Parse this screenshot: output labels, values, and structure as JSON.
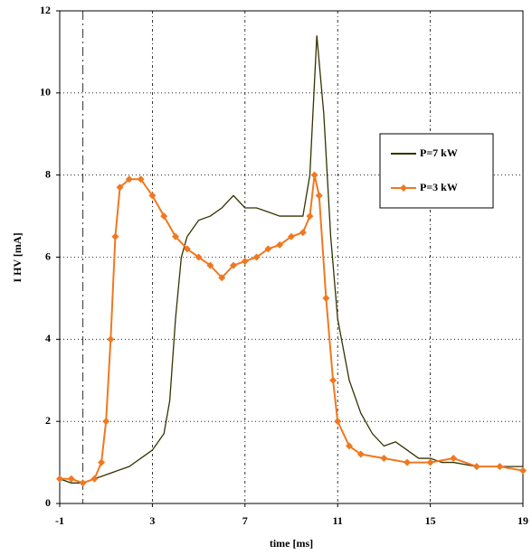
{
  "chart_data": {
    "type": "line",
    "x_label": "time [ms]",
    "y_label": "I HV [mA]",
    "xlim": [
      -1,
      19
    ],
    "xticks": [
      -1,
      3,
      7,
      11,
      15,
      19
    ],
    "ylim": [
      0,
      12
    ],
    "yticks": [
      0,
      2,
      4,
      6,
      8,
      10,
      12
    ],
    "grid": true,
    "legend": "right",
    "vline": 0,
    "series": [
      {
        "name": "P=7 kW",
        "color": "#333300",
        "marker": "none",
        "x": [
          -1,
          -0.5,
          0,
          0.5,
          1,
          1.5,
          2,
          2.5,
          3,
          3.5,
          3.75,
          4,
          4.25,
          4.5,
          5,
          5.5,
          6,
          6.5,
          7,
          7.5,
          8,
          8.5,
          9,
          9.5,
          9.8,
          10.1,
          10.4,
          10.7,
          11,
          11.5,
          12,
          12.5,
          13,
          13.5,
          14,
          14.5,
          15,
          15.5,
          16,
          17,
          18,
          19
        ],
        "values": [
          0.6,
          0.5,
          0.5,
          0.6,
          0.7,
          0.8,
          0.9,
          1.1,
          1.3,
          1.7,
          2.5,
          4.5,
          6.0,
          6.5,
          6.9,
          7.0,
          7.2,
          7.5,
          7.2,
          7.2,
          7.1,
          7.0,
          7.0,
          7.0,
          8.0,
          11.4,
          9.5,
          6.5,
          4.5,
          3.0,
          2.2,
          1.7,
          1.4,
          1.5,
          1.3,
          1.1,
          1.1,
          1.0,
          1.0,
          0.9,
          0.9,
          0.9
        ]
      },
      {
        "name": "P=3 kW",
        "color": "#f07820",
        "marker": "diamond",
        "x": [
          -1,
          -0.5,
          0,
          0.5,
          0.8,
          1,
          1.2,
          1.4,
          1.6,
          2,
          2.5,
          3,
          3.5,
          4,
          4.5,
          5,
          5.5,
          6,
          6.5,
          7,
          7.5,
          8,
          8.5,
          9,
          9.5,
          9.8,
          10,
          10.2,
          10.5,
          10.8,
          11,
          11.5,
          12,
          13,
          14,
          15,
          16,
          17,
          18,
          19
        ],
        "values": [
          0.6,
          0.6,
          0.5,
          0.6,
          1.0,
          2.0,
          4.0,
          6.5,
          7.7,
          7.9,
          7.9,
          7.5,
          7.0,
          6.5,
          6.2,
          6.0,
          5.8,
          5.5,
          5.8,
          5.9,
          6.0,
          6.2,
          6.3,
          6.5,
          6.6,
          7.0,
          8.0,
          7.5,
          5.0,
          3.0,
          2.0,
          1.4,
          1.2,
          1.1,
          1.0,
          1.0,
          1.1,
          0.9,
          0.9,
          0.8
        ]
      }
    ]
  }
}
